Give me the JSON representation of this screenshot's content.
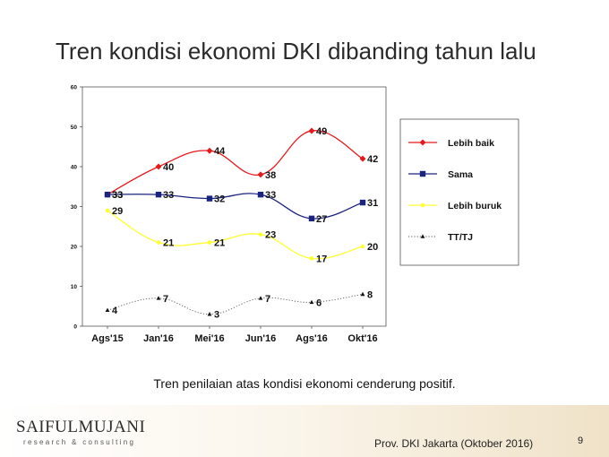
{
  "slide": {
    "title": "Tren kondisi ekonomi DKI dibanding tahun lalu",
    "caption": "Tren penilaian atas kondisi ekonomi cenderung positif.",
    "logo_main": "SAIFULMUJANI",
    "logo_sub": "research & consulting",
    "footer": "Prov. DKI Jakarta (Oktober 2016)",
    "page": "9"
  },
  "chart_data": {
    "type": "line",
    "categories": [
      "Ags'15",
      "Jan'16",
      "Mei'16",
      "Jun'16",
      "Ags'16",
      "Okt'16"
    ],
    "ylim": [
      0,
      60
    ],
    "yticks": [
      0,
      10,
      20,
      30,
      40,
      50,
      60
    ],
    "grid": false,
    "legend_position": "right",
    "series": [
      {
        "name": "Lebih baik",
        "values": [
          33,
          40,
          44,
          38,
          49,
          42
        ],
        "color": "#e41a1c",
        "marker": "diamond",
        "line": "solid"
      },
      {
        "name": "Sama",
        "values": [
          33,
          33,
          32,
          33,
          27,
          31
        ],
        "color": "#1a237e",
        "marker": "square",
        "line": "solid"
      },
      {
        "name": "Lebih buruk",
        "values": [
          29,
          21,
          21,
          23,
          17,
          20
        ],
        "color": "#ffff33",
        "marker": "circle",
        "line": "solid"
      },
      {
        "name": "TT/TJ",
        "values": [
          4,
          7,
          3,
          7,
          6,
          8
        ],
        "color": "#555555",
        "marker": "triangle",
        "line": "dotted"
      }
    ]
  }
}
